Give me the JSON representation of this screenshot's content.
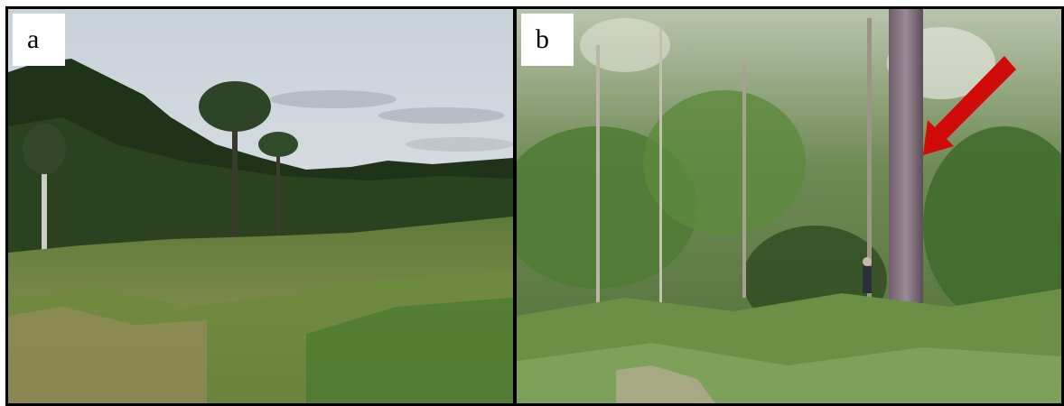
{
  "panels": [
    {
      "label": "a",
      "scene": "forest-edge-with-regrowth"
    },
    {
      "label": "b",
      "scene": "forest-interior-with-tree-trunk"
    }
  ],
  "annotation": {
    "arrow_color": "#d10a0a"
  },
  "colors": {
    "border": "#000000",
    "label_bg": "#ffffff",
    "sky": "#d6dde3",
    "vegetation": "#3f5a2e"
  }
}
